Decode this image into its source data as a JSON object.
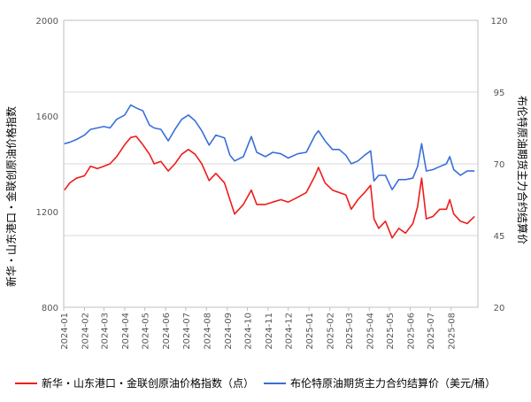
{
  "chart_data": {
    "type": "line",
    "title": "",
    "x_ticks": [
      "2024-01",
      "2024-02",
      "2024-03",
      "2024-04",
      "2024-05",
      "2024-06",
      "2024-07",
      "2024-08",
      "2024-09",
      "2024-10",
      "2024-11",
      "2024-12",
      "2025-01",
      "2025-02",
      "2025-03",
      "2025-04",
      "2025-05",
      "2025-06",
      "2025-07",
      "2025-08"
    ],
    "x_range": [
      "2024-01-01",
      "2025-09-10"
    ],
    "y_left": {
      "label": "新华・山东港口・金联创原油价格指数",
      "range": [
        800,
        2000
      ],
      "ticks": [
        "800",
        "1200",
        "1600",
        "2000"
      ]
    },
    "y_right": {
      "label": "布伦特原油期货主力合约结算价",
      "range": [
        20,
        120
      ],
      "ticks": [
        "20",
        "45",
        "70",
        "95",
        "120"
      ]
    },
    "grid": true,
    "legend_position": "bottom",
    "series": [
      {
        "name": "新华・山东港口・金联创原油价格指数（点）",
        "axis": "left",
        "color": "#ee1c1c",
        "points": [
          [
            "2024-01-02",
            1290
          ],
          [
            "2024-01-10",
            1320
          ],
          [
            "2024-01-20",
            1340
          ],
          [
            "2024-02-01",
            1350
          ],
          [
            "2024-02-10",
            1390
          ],
          [
            "2024-02-20",
            1380
          ],
          [
            "2024-03-01",
            1390
          ],
          [
            "2024-03-10",
            1400
          ],
          [
            "2024-03-20",
            1430
          ],
          [
            "2024-04-01",
            1480
          ],
          [
            "2024-04-10",
            1510
          ],
          [
            "2024-04-18",
            1515
          ],
          [
            "2024-04-28",
            1480
          ],
          [
            "2024-05-08",
            1440
          ],
          [
            "2024-05-15",
            1400
          ],
          [
            "2024-05-25",
            1410
          ],
          [
            "2024-06-05",
            1370
          ],
          [
            "2024-06-15",
            1400
          ],
          [
            "2024-06-25",
            1440
          ],
          [
            "2024-07-05",
            1460
          ],
          [
            "2024-07-15",
            1440
          ],
          [
            "2024-07-25",
            1400
          ],
          [
            "2024-08-05",
            1330
          ],
          [
            "2024-08-15",
            1360
          ],
          [
            "2024-08-28",
            1320
          ],
          [
            "2024-09-05",
            1250
          ],
          [
            "2024-09-12",
            1190
          ],
          [
            "2024-09-25",
            1230
          ],
          [
            "2024-10-07",
            1290
          ],
          [
            "2024-10-15",
            1230
          ],
          [
            "2024-10-28",
            1230
          ],
          [
            "2024-11-08",
            1240
          ],
          [
            "2024-11-20",
            1250
          ],
          [
            "2024-12-01",
            1240
          ],
          [
            "2024-12-15",
            1260
          ],
          [
            "2024-12-28",
            1280
          ],
          [
            "2025-01-10",
            1350
          ],
          [
            "2025-01-15",
            1385
          ],
          [
            "2025-01-25",
            1320
          ],
          [
            "2025-02-05",
            1290
          ],
          [
            "2025-02-15",
            1280
          ],
          [
            "2025-02-25",
            1270
          ],
          [
            "2025-03-05",
            1210
          ],
          [
            "2025-03-15",
            1250
          ],
          [
            "2025-03-25",
            1280
          ],
          [
            "2025-04-03",
            1310
          ],
          [
            "2025-04-08",
            1170
          ],
          [
            "2025-04-15",
            1130
          ],
          [
            "2025-04-25",
            1160
          ],
          [
            "2025-05-05",
            1090
          ],
          [
            "2025-05-15",
            1130
          ],
          [
            "2025-05-25",
            1110
          ],
          [
            "2025-06-05",
            1150
          ],
          [
            "2025-06-12",
            1220
          ],
          [
            "2025-06-18",
            1340
          ],
          [
            "2025-06-25",
            1170
          ],
          [
            "2025-07-05",
            1180
          ],
          [
            "2025-07-15",
            1210
          ],
          [
            "2025-07-25",
            1210
          ],
          [
            "2025-07-30",
            1250
          ],
          [
            "2025-08-05",
            1190
          ],
          [
            "2025-08-15",
            1160
          ],
          [
            "2025-08-25",
            1150
          ],
          [
            "2025-09-05",
            1180
          ]
        ]
      },
      {
        "name": "布伦特原油期货主力合约结算价（美元/桶）",
        "axis": "right",
        "color": "#3a6fd8",
        "points": [
          [
            "2024-01-02",
            77
          ],
          [
            "2024-01-10",
            77.5
          ],
          [
            "2024-01-20",
            78.5
          ],
          [
            "2024-02-01",
            80
          ],
          [
            "2024-02-10",
            82
          ],
          [
            "2024-02-20",
            82.5
          ],
          [
            "2024-03-01",
            83
          ],
          [
            "2024-03-10",
            82.5
          ],
          [
            "2024-03-20",
            85.5
          ],
          [
            "2024-04-01",
            87
          ],
          [
            "2024-04-10",
            90.5
          ],
          [
            "2024-04-18",
            89.5
          ],
          [
            "2024-04-28",
            88.5
          ],
          [
            "2024-05-08",
            83.5
          ],
          [
            "2024-05-15",
            82.5
          ],
          [
            "2024-05-25",
            82
          ],
          [
            "2024-06-05",
            78
          ],
          [
            "2024-06-15",
            82
          ],
          [
            "2024-06-25",
            85.5
          ],
          [
            "2024-07-05",
            87
          ],
          [
            "2024-07-15",
            85
          ],
          [
            "2024-07-25",
            81.5
          ],
          [
            "2024-08-05",
            76.5
          ],
          [
            "2024-08-15",
            80
          ],
          [
            "2024-08-28",
            79
          ],
          [
            "2024-09-05",
            73
          ],
          [
            "2024-09-12",
            71
          ],
          [
            "2024-09-25",
            72.5
          ],
          [
            "2024-10-07",
            79.5
          ],
          [
            "2024-10-15",
            74
          ],
          [
            "2024-10-28",
            72.5
          ],
          [
            "2024-11-08",
            74
          ],
          [
            "2024-11-20",
            73.5
          ],
          [
            "2024-12-01",
            72
          ],
          [
            "2024-12-15",
            73.5
          ],
          [
            "2024-12-28",
            74
          ],
          [
            "2025-01-10",
            80
          ],
          [
            "2025-01-15",
            81.5
          ],
          [
            "2025-01-25",
            78
          ],
          [
            "2025-02-05",
            75
          ],
          [
            "2025-02-15",
            75
          ],
          [
            "2025-02-25",
            73
          ],
          [
            "2025-03-05",
            70
          ],
          [
            "2025-03-15",
            71
          ],
          [
            "2025-03-25",
            73
          ],
          [
            "2025-04-03",
            74.5
          ],
          [
            "2025-04-08",
            64
          ],
          [
            "2025-04-15",
            66
          ],
          [
            "2025-04-25",
            66
          ],
          [
            "2025-05-05",
            61
          ],
          [
            "2025-05-15",
            64.5
          ],
          [
            "2025-05-25",
            64.5
          ],
          [
            "2025-06-05",
            65
          ],
          [
            "2025-06-12",
            69
          ],
          [
            "2025-06-18",
            77
          ],
          [
            "2025-06-25",
            67.5
          ],
          [
            "2025-07-05",
            68
          ],
          [
            "2025-07-15",
            69
          ],
          [
            "2025-07-25",
            70
          ],
          [
            "2025-07-30",
            72.5
          ],
          [
            "2025-08-05",
            68
          ],
          [
            "2025-08-15",
            66
          ],
          [
            "2025-08-25",
            67.5
          ],
          [
            "2025-09-05",
            67.5
          ]
        ]
      }
    ]
  }
}
